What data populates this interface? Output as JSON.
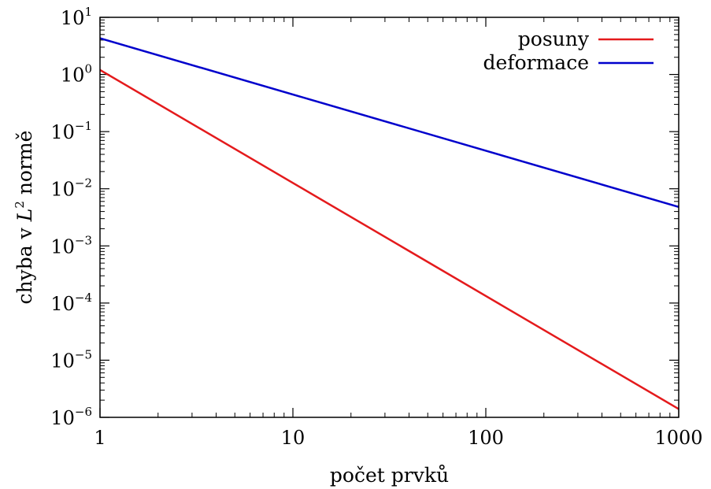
{
  "chart_data": {
    "type": "line",
    "title": "",
    "xlabel": "počet prvků",
    "ylabel_parts": {
      "before": "chyba v ",
      "symbol": "L",
      "superscript": "2",
      "after": " normě"
    },
    "x_scale": "log",
    "y_scale": "log",
    "xlim": [
      1,
      1000
    ],
    "ylim": [
      1e-06,
      10
    ],
    "x_ticks": [
      {
        "value": 1,
        "label": "1"
      },
      {
        "value": 10,
        "label": "10"
      },
      {
        "value": 100,
        "label": "100"
      },
      {
        "value": 1000,
        "label": "1000"
      }
    ],
    "y_ticks": [
      {
        "value": 10,
        "base": "10",
        "exp": "1"
      },
      {
        "value": 1,
        "base": "10",
        "exp": "0"
      },
      {
        "value": 0.1,
        "base": "10",
        "exp": "−1"
      },
      {
        "value": 0.01,
        "base": "10",
        "exp": "−2"
      },
      {
        "value": 0.001,
        "base": "10",
        "exp": "−3"
      },
      {
        "value": 0.0001,
        "base": "10",
        "exp": "−4"
      },
      {
        "value": 1e-05,
        "base": "10",
        "exp": "−5"
      },
      {
        "value": 1e-06,
        "base": "10",
        "exp": "−6"
      }
    ],
    "grid": false,
    "legend_position": "top-right",
    "series": [
      {
        "name": "posuny",
        "color": "#e41a1c",
        "x": [
          1,
          1000
        ],
        "y": [
          1.2,
          1.4e-06
        ]
      },
      {
        "name": "deformace",
        "color": "#0000cc",
        "x": [
          1,
          1000
        ],
        "y": [
          4.3,
          0.0048
        ]
      }
    ]
  }
}
